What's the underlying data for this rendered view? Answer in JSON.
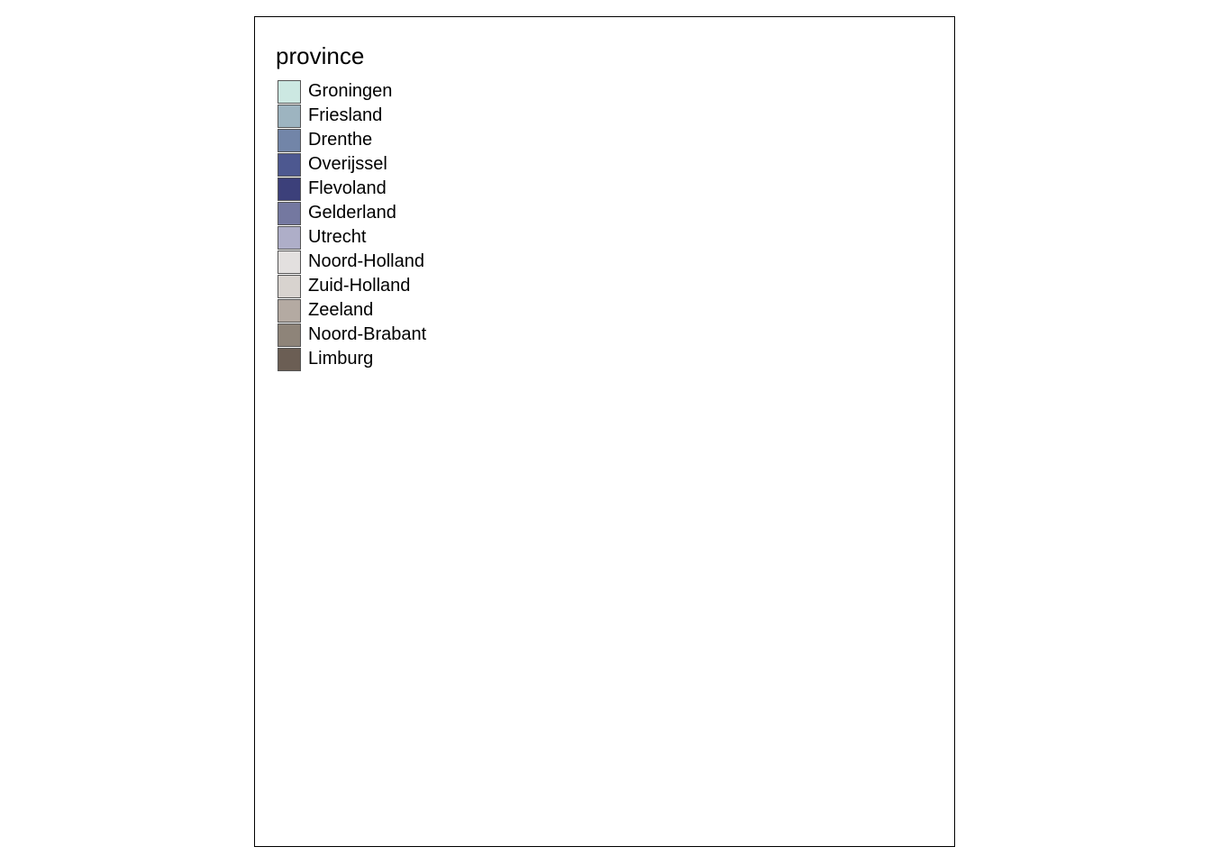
{
  "legend": {
    "title": "province",
    "items": [
      {
        "key": "groningen",
        "label": "Groningen",
        "color": "#cce8e2"
      },
      {
        "key": "friesland",
        "label": "Friesland",
        "color": "#9db4c0"
      },
      {
        "key": "drenthe",
        "label": "Drenthe",
        "color": "#7285a8"
      },
      {
        "key": "overijssel",
        "label": "Overijssel",
        "color": "#4d5890"
      },
      {
        "key": "flevoland",
        "label": "Flevoland",
        "color": "#3c407a"
      },
      {
        "key": "gelderland",
        "label": "Gelderland",
        "color": "#7478a0"
      },
      {
        "key": "utrecht",
        "label": "Utrecht",
        "color": "#aeaec8"
      },
      {
        "key": "noord-holland",
        "label": "Noord-Holland",
        "color": "#e3e0df"
      },
      {
        "key": "zuid-holland",
        "label": "Zuid-Holland",
        "color": "#d8d3cf"
      },
      {
        "key": "zeeland",
        "label": "Zeeland",
        "color": "#b4aaa2"
      },
      {
        "key": "noord-brabant",
        "label": "Noord-Brabant",
        "color": "#8e8479"
      },
      {
        "key": "limburg",
        "label": "Limburg",
        "color": "#6b5e54"
      }
    ]
  },
  "map": {
    "border_color": "#5a5a5a"
  }
}
